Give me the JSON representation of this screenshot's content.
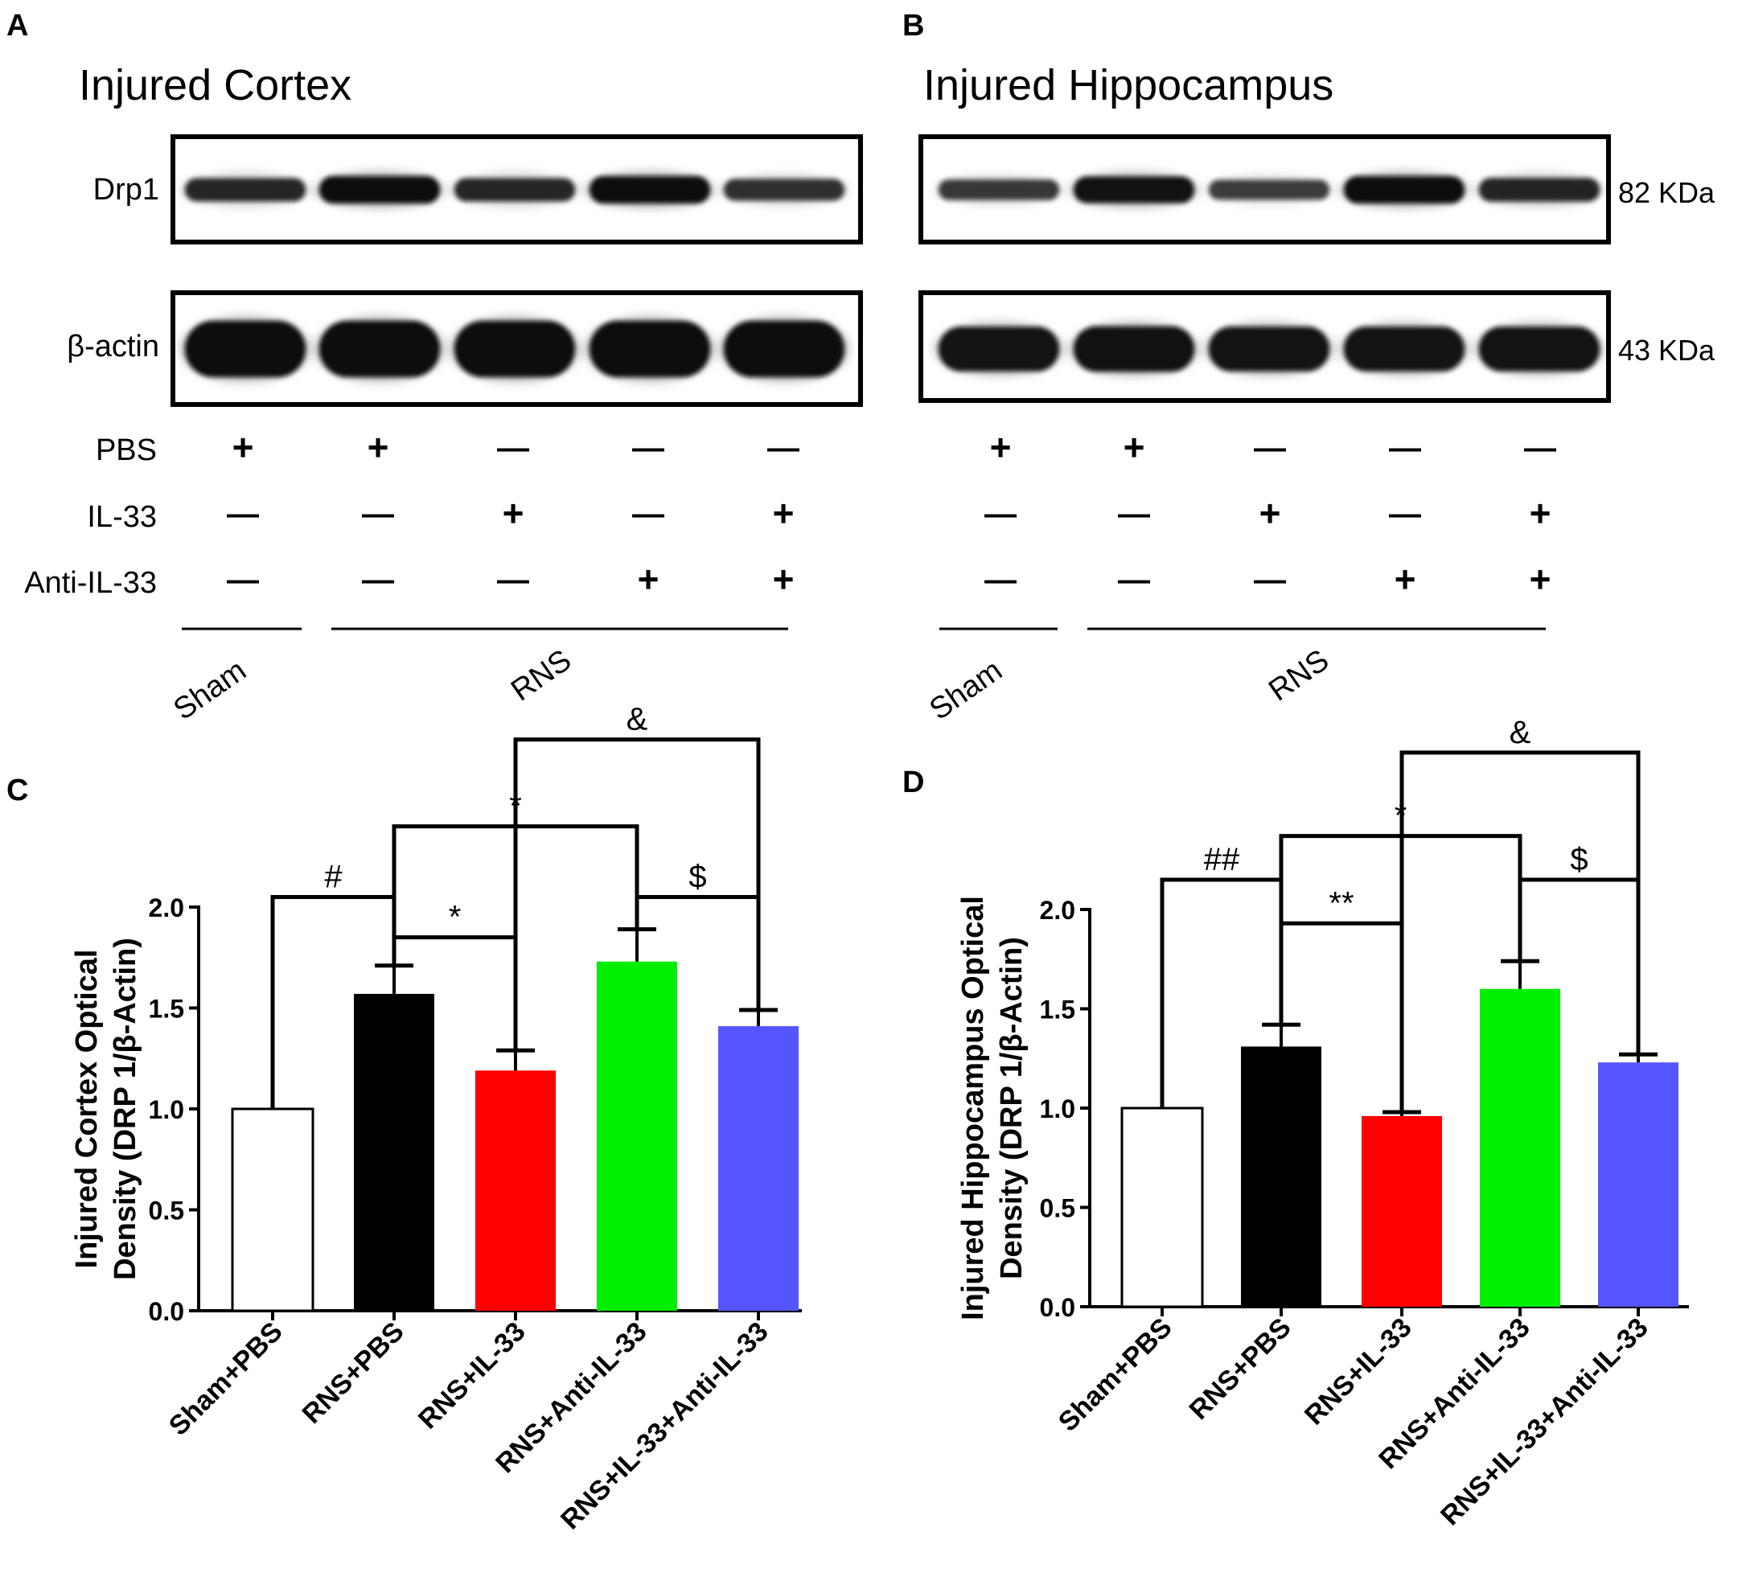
{
  "panels": {
    "A": {
      "letter": "A",
      "title": "Injured Cortex",
      "rows": [
        "Drp1",
        "β-actin"
      ],
      "drp1_intensity": [
        0.72,
        1.0,
        0.72,
        1.0,
        0.62
      ],
      "actin_intensity": [
        1.0,
        1.0,
        1.0,
        1.0,
        1.0
      ]
    },
    "B": {
      "letter": "B",
      "title": "Injured Hippocampus",
      "kda": [
        "82 KDa",
        "43 KDa"
      ],
      "drp1_intensity": [
        0.55,
        0.95,
        0.5,
        1.0,
        0.75
      ],
      "actin_intensity": [
        0.92,
        0.95,
        0.92,
        0.92,
        0.92
      ]
    },
    "C": {
      "letter": "C"
    },
    "D": {
      "letter": "D"
    }
  },
  "treatment": {
    "labels": [
      "PBS",
      "IL-33",
      "Anti-IL-33"
    ],
    "matrix": [
      [
        "+",
        "+",
        "—",
        "—",
        "—"
      ],
      [
        "—",
        "—",
        "+",
        "—",
        "+"
      ],
      [
        "—",
        "—",
        "—",
        "+",
        "+"
      ]
    ],
    "groups": [
      "Sham",
      "RNS"
    ]
  },
  "chart_data": [
    {
      "type": "bar",
      "categories": [
        "Sham+PBS",
        "RNS+PBS",
        "RNS+IL-33",
        "RNS+Anti-IL-33",
        "RNS+IL-33+Anti-IL-33"
      ],
      "values": [
        1.0,
        1.57,
        1.19,
        1.73,
        1.41
      ],
      "errors": [
        0.0,
        0.14,
        0.1,
        0.16,
        0.08
      ],
      "colors": [
        "#ffffff",
        "#000000",
        "#ff0000",
        "#00ee00",
        "#5555ff"
      ],
      "ylabel": [
        "Injured Cortex Optical",
        "Density (DRP 1/β-Actin)"
      ],
      "ylim": [
        0,
        2.0
      ],
      "yticks": [
        "0.0",
        "0.5",
        "1.0",
        "1.5",
        "2.0"
      ],
      "brackets": [
        {
          "a": 0,
          "b": 1,
          "level": 2.05,
          "label": "#"
        },
        {
          "a": 1,
          "b": 2,
          "level": 1.85,
          "label": "*"
        },
        {
          "a": 1,
          "b": 3,
          "level": 2.4,
          "label": "*"
        },
        {
          "a": 3,
          "b": 4,
          "level": 2.05,
          "label": "$"
        },
        {
          "a": 2,
          "b": 4,
          "level": 2.83,
          "label": "&"
        }
      ]
    },
    {
      "type": "bar",
      "categories": [
        "Sham+PBS",
        "RNS+PBS",
        "RNS+IL-33",
        "RNS+Anti-IL-33",
        "RNS+IL-33+Anti-IL-33"
      ],
      "values": [
        1.0,
        1.31,
        0.96,
        1.6,
        1.23
      ],
      "errors": [
        0.0,
        0.11,
        0.02,
        0.14,
        0.04
      ],
      "colors": [
        "#ffffff",
        "#000000",
        "#ff0000",
        "#00ee00",
        "#5555ff"
      ],
      "ylabel": [
        "Injured Hippocampus Optical",
        "Density (DRP 1/β-Actin)"
      ],
      "ylim": [
        0,
        2.0
      ],
      "yticks": [
        "0.0",
        "0.5",
        "1.0",
        "1.5",
        "2.0"
      ],
      "brackets": [
        {
          "a": 0,
          "b": 1,
          "level": 2.15,
          "label": "##"
        },
        {
          "a": 1,
          "b": 2,
          "level": 1.93,
          "label": "**"
        },
        {
          "a": 1,
          "b": 3,
          "level": 2.37,
          "label": "*"
        },
        {
          "a": 3,
          "b": 4,
          "level": 2.15,
          "label": "$"
        },
        {
          "a": 2,
          "b": 4,
          "level": 2.79,
          "label": "&"
        }
      ]
    }
  ]
}
